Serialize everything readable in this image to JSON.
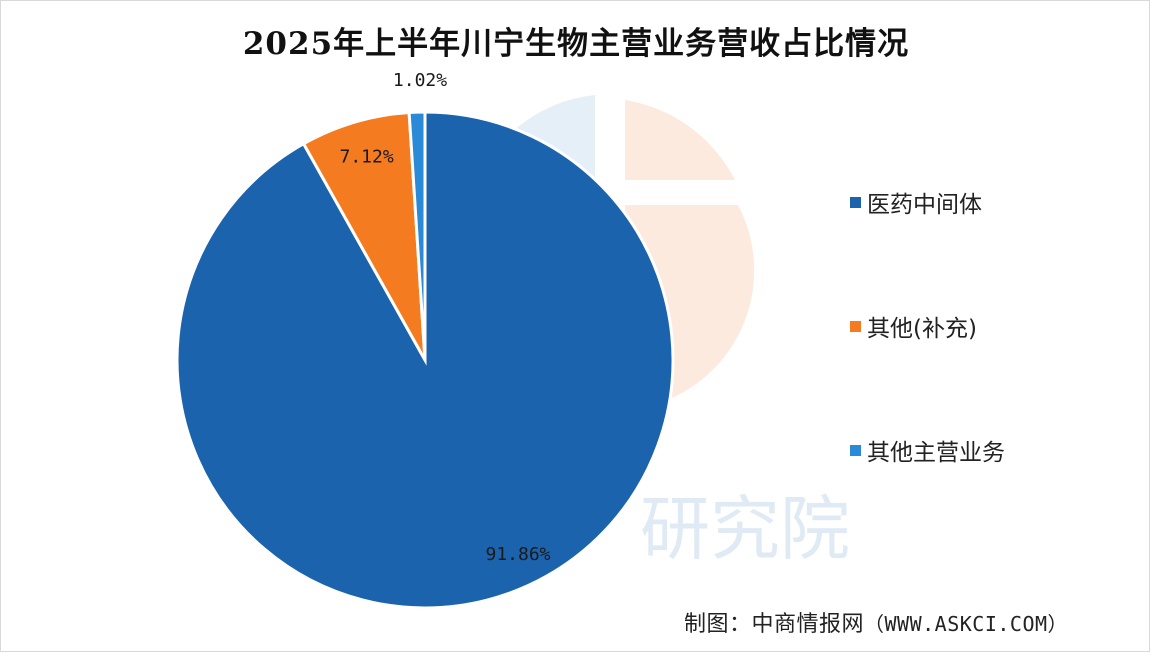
{
  "title": "2025年上半年川宁生物主营业务营收占比情况",
  "chart_data": {
    "type": "pie",
    "title": "2025年上半年川宁生物主营业务营收占比情况",
    "slices": [
      {
        "label": "医药中间体",
        "value": 91.86,
        "display": "91.86%",
        "color": "#1b63ad"
      },
      {
        "label": "其他(补充)",
        "value": 7.12,
        "display": "7.12%",
        "color": "#f47b20"
      },
      {
        "label": "其他主营业务",
        "value": 1.02,
        "display": "1.02%",
        "color": "#2a8ad8"
      }
    ],
    "legend_position": "right"
  },
  "watermark": {
    "text": "研究院"
  },
  "source": {
    "prefix": "制图：中商情报网",
    "url": "（WWW.ASKCI.COM）"
  }
}
